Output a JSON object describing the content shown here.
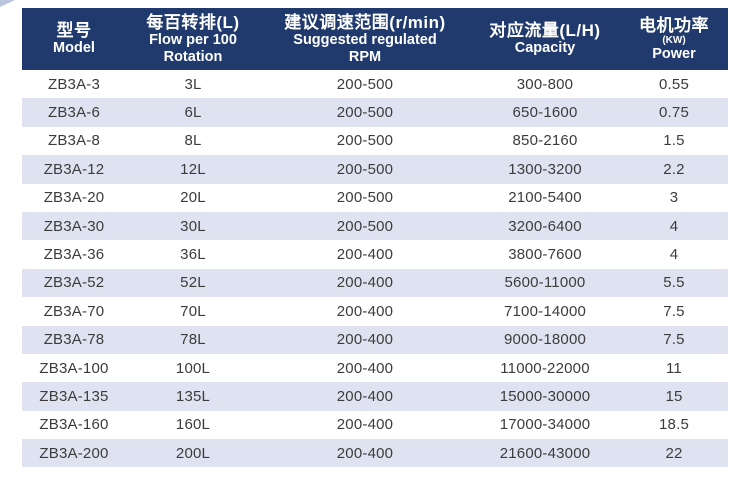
{
  "colors": {
    "header_bg": "#203a6e",
    "header_text": "#ffffff",
    "stripe_bg": "#dfe3f1",
    "row_text": "#3c3c3c",
    "corner_accent": "#b9c6de"
  },
  "table": {
    "header": {
      "columns": [
        {
          "key": "model",
          "zh": "型号",
          "small": "",
          "en": [
            "Model"
          ]
        },
        {
          "key": "flow",
          "zh": "每百转排(L)",
          "small": "",
          "en": [
            "Flow per 100",
            "Rotation"
          ]
        },
        {
          "key": "rpm",
          "zh": "建议调速范围(r/min)",
          "small": "",
          "en": [
            "Suggested regulated",
            "RPM"
          ]
        },
        {
          "key": "capacity",
          "zh": "对应流量(L/H)",
          "small": "",
          "en": [
            "Capacity"
          ]
        },
        {
          "key": "power",
          "zh": "电机功率",
          "small": "(KW)",
          "en": [
            "Power"
          ]
        }
      ]
    },
    "rows": [
      {
        "model": "ZB3A-3",
        "flow": "3L",
        "rpm": "200-500",
        "capacity": "300-800",
        "power": "0.55"
      },
      {
        "model": "ZB3A-6",
        "flow": "6L",
        "rpm": "200-500",
        "capacity": "650-1600",
        "power": "0.75"
      },
      {
        "model": "ZB3A-8",
        "flow": "8L",
        "rpm": "200-500",
        "capacity": "850-2160",
        "power": "1.5"
      },
      {
        "model": "ZB3A-12",
        "flow": "12L",
        "rpm": "200-500",
        "capacity": "1300-3200",
        "power": "2.2"
      },
      {
        "model": "ZB3A-20",
        "flow": "20L",
        "rpm": "200-500",
        "capacity": "2100-5400",
        "power": "3"
      },
      {
        "model": "ZB3A-30",
        "flow": "30L",
        "rpm": "200-500",
        "capacity": "3200-6400",
        "power": "4"
      },
      {
        "model": "ZB3A-36",
        "flow": "36L",
        "rpm": "200-400",
        "capacity": "3800-7600",
        "power": "4"
      },
      {
        "model": "ZB3A-52",
        "flow": "52L",
        "rpm": "200-400",
        "capacity": "5600-11000",
        "power": "5.5"
      },
      {
        "model": "ZB3A-70",
        "flow": "70L",
        "rpm": "200-400",
        "capacity": "7100-14000",
        "power": "7.5"
      },
      {
        "model": "ZB3A-78",
        "flow": "78L",
        "rpm": "200-400",
        "capacity": "9000-18000",
        "power": "7.5"
      },
      {
        "model": "ZB3A-100",
        "flow": "100L",
        "rpm": "200-400",
        "capacity": "11000-22000",
        "power": "11"
      },
      {
        "model": "ZB3A-135",
        "flow": "135L",
        "rpm": "200-400",
        "capacity": "15000-30000",
        "power": "15"
      },
      {
        "model": "ZB3A-160",
        "flow": "160L",
        "rpm": "200-400",
        "capacity": "17000-34000",
        "power": "18.5"
      },
      {
        "model": "ZB3A-200",
        "flow": "200L",
        "rpm": "200-400",
        "capacity": "21600-43000",
        "power": "22"
      }
    ]
  }
}
